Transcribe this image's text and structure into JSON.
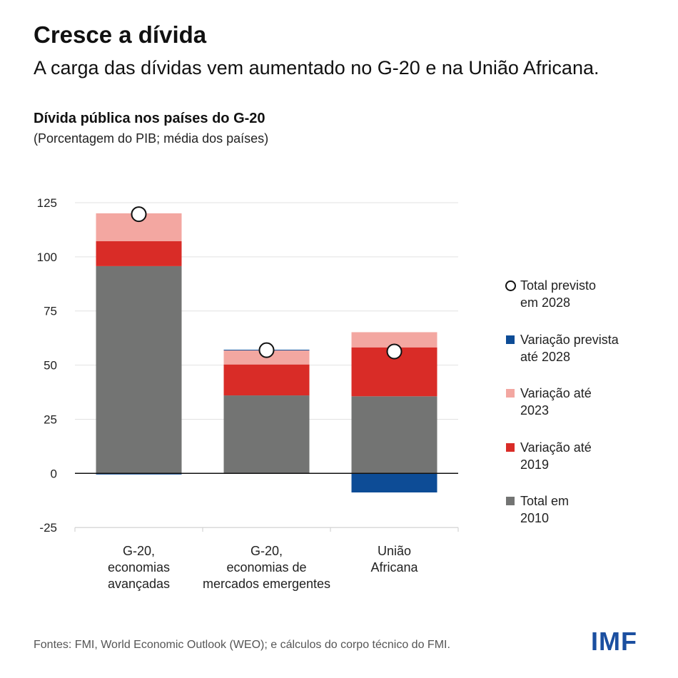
{
  "header": {
    "title": "Cresce a dívida",
    "subtitle": "A carga das dívidas vem aumentado no G-20 e na União Africana."
  },
  "footer": {
    "source": "Fontes: FMI, World Economic Outlook (WEO); e cálculos do corpo técnico do FMI.",
    "logo": "IMF"
  },
  "chart_data": {
    "type": "bar",
    "stacked": true,
    "title": "Dívida pública nos países do G-20",
    "subtitle": "(Porcentagem do PIB; média dos países)",
    "categories": [
      [
        "G-20,",
        "economias",
        "avançadas"
      ],
      [
        "G-20,",
        "economias de",
        "mercados emergentes"
      ],
      [
        "União",
        "Africana"
      ]
    ],
    "ylim": [
      -25,
      125
    ],
    "yticks": [
      125,
      100,
      75,
      50,
      25,
      0,
      -25
    ],
    "grid": true,
    "legend_position": "right",
    "series": [
      {
        "name": "Total em 2010",
        "color": "#737473",
        "values": [
          95.7,
          36.0,
          35.6
        ]
      },
      {
        "name": "Variação até 2019",
        "color": "#d92c27",
        "values": [
          11.5,
          14.3,
          22.6
        ]
      },
      {
        "name": "Variação até 2023",
        "color": "#f3a7a1",
        "values": [
          12.9,
          6.6,
          7.0
        ]
      },
      {
        "name": "Variação prevista até 2028",
        "color": "#0d4c96",
        "values": [
          -0.5,
          0.2,
          -8.8
        ]
      }
    ],
    "markers": {
      "name": "Total previsto em 2028",
      "values": [
        119.7,
        56.9,
        56.3
      ]
    },
    "legend": [
      {
        "label": "Total previsto\nem 2028",
        "kind": "circle"
      },
      {
        "label": "Variação prevista\naté 2028",
        "color": "#0d4c96"
      },
      {
        "label": "Variação até\n2023",
        "color": "#f3a7a1"
      },
      {
        "label": "Variação até\n2019",
        "color": "#d92c27"
      },
      {
        "label": "Total em\n2010",
        "color": "#737473"
      }
    ]
  }
}
